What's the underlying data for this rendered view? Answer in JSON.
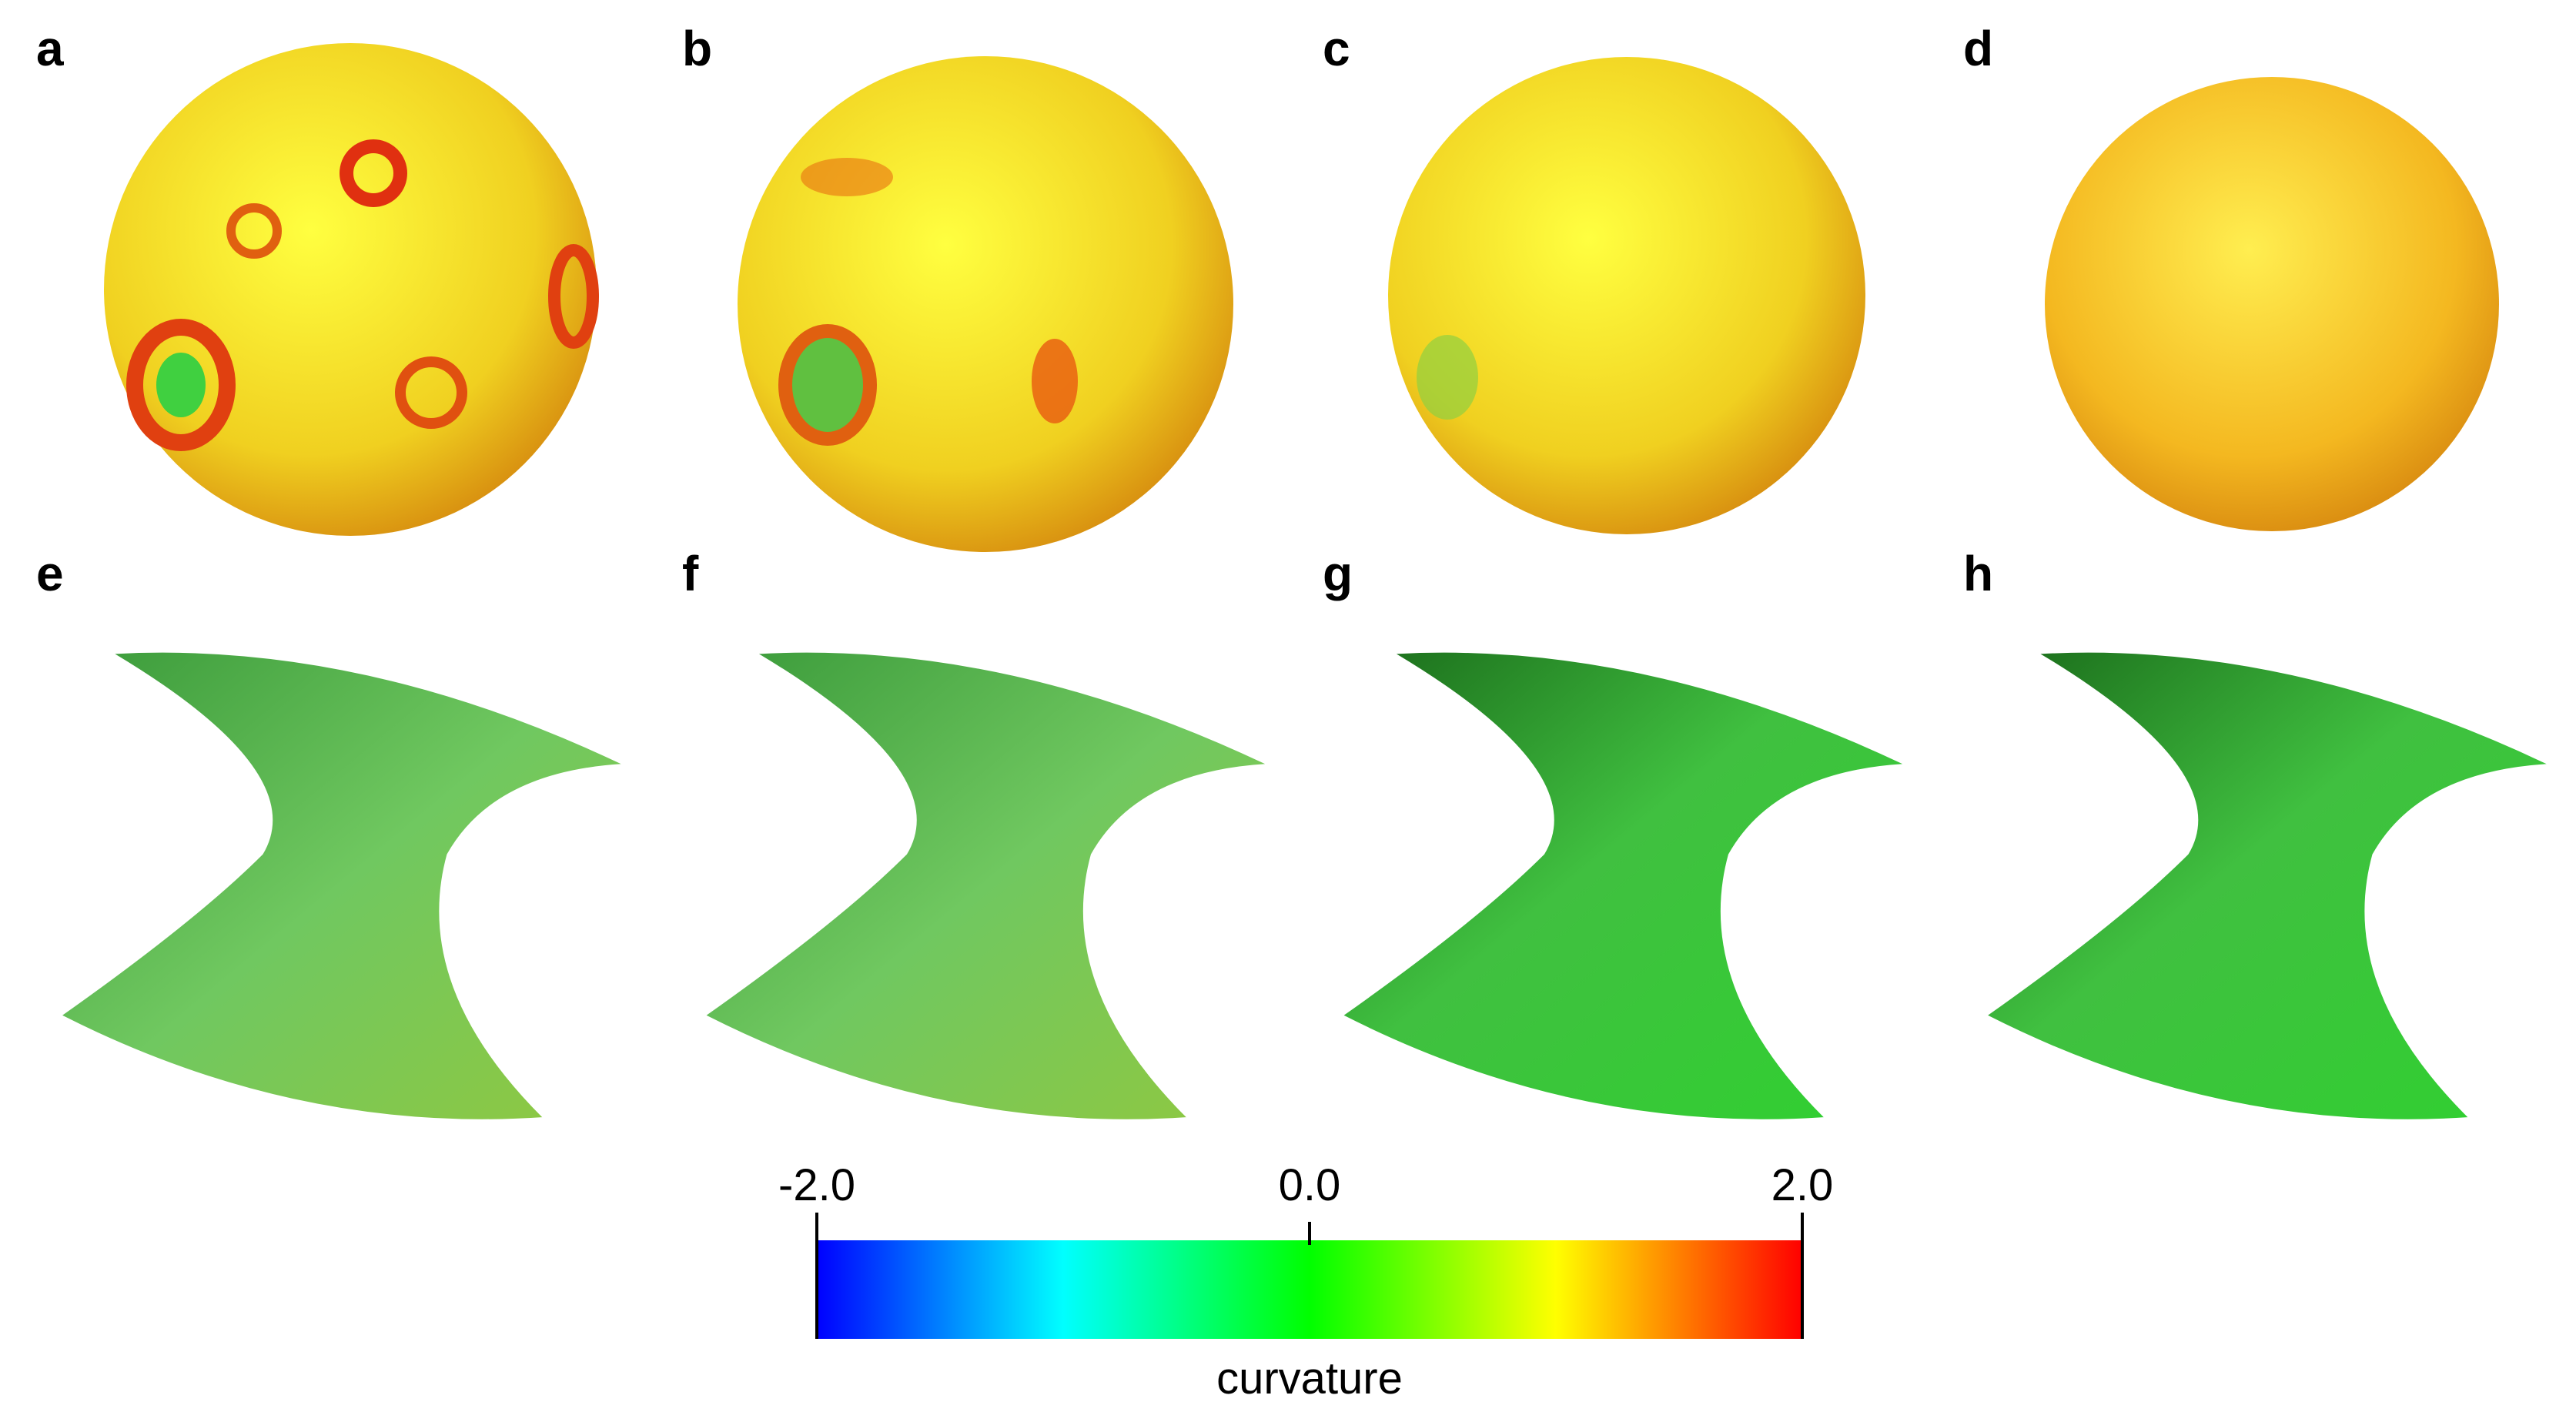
{
  "panels": [
    {
      "label": "a"
    },
    {
      "label": "b"
    },
    {
      "label": "c"
    },
    {
      "label": "d"
    },
    {
      "label": "e"
    },
    {
      "label": "f"
    },
    {
      "label": "g"
    },
    {
      "label": "h"
    }
  ],
  "colorbar": {
    "label": "curvature",
    "lim": [
      -2,
      2
    ],
    "ticks": [
      {
        "value": -2,
        "label": "-2.0"
      },
      {
        "value": 0,
        "label": "0.0"
      },
      {
        "value": 2,
        "label": "2.0"
      }
    ],
    "colors": [
      "#0000ff",
      "#00ffff",
      "#00ff00",
      "#ffff00",
      "#ff0000"
    ]
  }
}
